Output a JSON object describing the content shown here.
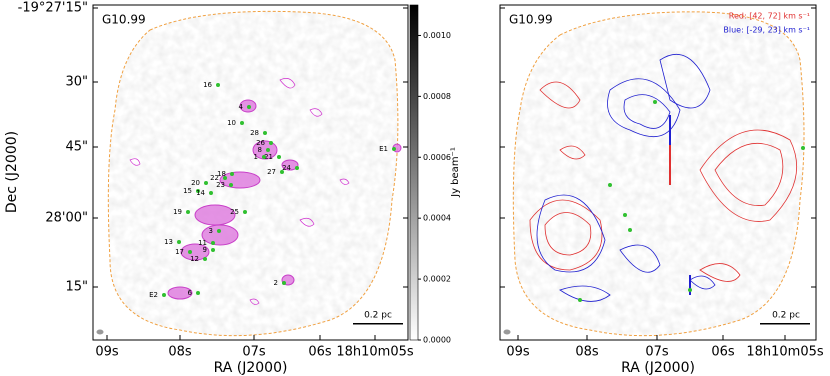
{
  "ylabel": "Dec (J2000)",
  "yticks": [
    "-19°27'15\"",
    "30\"",
    "45\"",
    "28'00\"",
    "15\""
  ],
  "panels": [
    {
      "field": "G10.99",
      "xlabel": "RA (J2000)",
      "xticks": [
        "09s",
        "08s",
        "07s",
        "06s",
        "18h10m05s"
      ],
      "scalebar": "0.2 pc",
      "sources": [
        "16",
        "4",
        "10",
        "28",
        "26",
        "8",
        "21",
        "1",
        "27",
        "24",
        "E1",
        "22",
        "23",
        "20",
        "18",
        "15",
        "14",
        "19",
        "25",
        "3",
        "11",
        "13",
        "9",
        "17",
        "12",
        "2",
        "6",
        "E2"
      ]
    },
    {
      "field": "G10.99",
      "xlabel": "RA (J2000)",
      "xticks": [
        "09s",
        "08s",
        "07s",
        "06s",
        "18h10m05s"
      ],
      "scalebar": "0.2 pc",
      "legend": [
        {
          "text": "Red: [42, 72] km s⁻¹",
          "color": "#e03030"
        },
        {
          "text": "Blue: [-29, 23] km s⁻¹",
          "color": "#2020d0"
        }
      ]
    }
  ],
  "colorbar": {
    "label": "Jy beam⁻¹",
    "lim": [
      0,
      0.0011
    ],
    "ticks": [
      {
        "value": 0,
        "label": "0.0000"
      },
      {
        "value": 0.0002,
        "label": "0.0002"
      },
      {
        "value": 0.0004,
        "label": "0.0004"
      },
      {
        "value": 0.0006,
        "label": "0.0006"
      },
      {
        "value": 0.0008,
        "label": "0.0008"
      },
      {
        "value": 0.001,
        "label": "0.0010"
      }
    ]
  }
}
